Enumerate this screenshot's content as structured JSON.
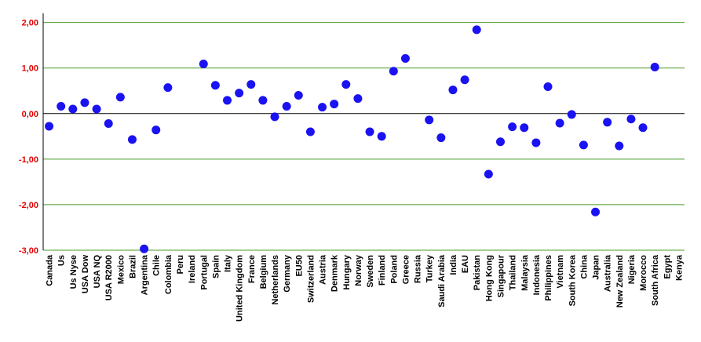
{
  "chart_data": {
    "type": "scatter",
    "categories": [
      "Canada",
      "Us",
      "Us Nyse",
      "USA Dow",
      "USA NQ",
      "USA R2000",
      "Mexico",
      "Brazil",
      "Argentina",
      "Chile",
      "Colombia",
      "Peru",
      "Ireland",
      "Portugal",
      "Spain",
      "Italy",
      "United Kingdom",
      "France",
      "Belgium",
      "Netherlands",
      "Germany",
      "EU50",
      "Switzerland",
      "Austria",
      "Denmark",
      "Hungary",
      "Norway",
      "Sweden",
      "Finland",
      "Poland",
      "Greece",
      "Russia",
      "Turkey",
      "Saudi Arabia",
      "India",
      "EAU",
      "Pakistan",
      "Hong Kong",
      "Singapour",
      "Thailand",
      "Malaysia",
      "Indonesia",
      "Philippines",
      "Vietnam",
      "South Korea",
      "China",
      "Japan",
      "Australia",
      "New Zealand",
      "Nigeria",
      "Morocco",
      "South Africa",
      "Egypt",
      "Kenya"
    ],
    "values": [
      -0.28,
      0.16,
      0.1,
      0.24,
      0.1,
      -0.22,
      0.36,
      -0.57,
      -2.97,
      -0.36,
      0.57,
      null,
      null,
      1.09,
      0.62,
      0.29,
      0.45,
      0.64,
      0.29,
      -0.07,
      0.16,
      0.4,
      -0.4,
      0.14,
      0.21,
      0.64,
      0.33,
      -0.4,
      -0.5,
      0.93,
      1.21,
      null,
      -0.14,
      -0.53,
      0.52,
      0.74,
      1.84,
      -1.33,
      -0.62,
      -0.29,
      -0.31,
      -0.64,
      0.59,
      -0.21,
      -0.02,
      -0.69,
      -2.16,
      -0.19,
      -0.71,
      -0.12,
      -0.31,
      1.02,
      null,
      null
    ],
    "color": "#1a12f0",
    "ylim": [
      -3,
      2.2
    ],
    "yticks": [
      {
        "value": -3,
        "label": "-3,00"
      },
      {
        "value": -2,
        "label": "-2,00"
      },
      {
        "value": -1,
        "label": "-1,00"
      },
      {
        "value": 0,
        "label": "0,00"
      },
      {
        "value": 1,
        "label": "1,00"
      },
      {
        "value": 2,
        "label": "2,00"
      }
    ],
    "grid": true,
    "grid_color": "#4a9a2a",
    "tick_label_color": "#e00000"
  }
}
